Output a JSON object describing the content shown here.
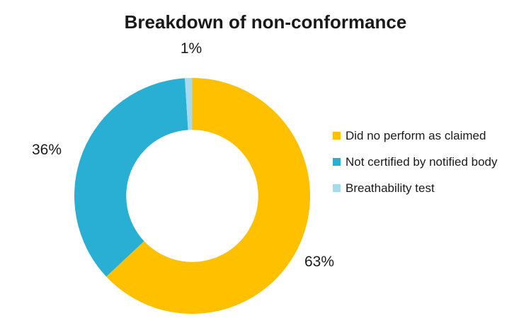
{
  "chart_data": {
    "type": "pie",
    "subtype": "donut",
    "title": "Breakdown of non-conformance",
    "direction": "clockwise",
    "start_angle_deg": 0,
    "inner_radius_ratio": 0.56,
    "legend_position": "right",
    "slices": [
      {
        "name": "Did no perform as claimed",
        "value": 63,
        "label": "63%",
        "color": "#FFC000"
      },
      {
        "name": "Not certified by notified body",
        "value": 36,
        "label": "36%",
        "color": "#29AFD4"
      },
      {
        "name": "Breathability test",
        "value": 1,
        "label": "1%",
        "color": "#A5DBEC"
      }
    ]
  }
}
